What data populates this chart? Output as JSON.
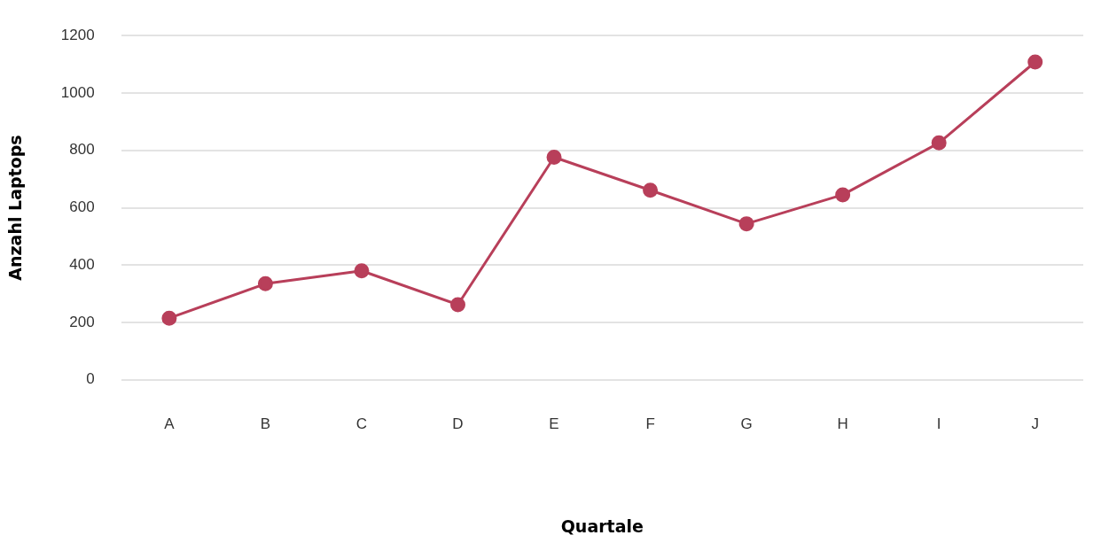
{
  "chart_data": {
    "type": "line",
    "xlabel": "Quartale",
    "ylabel": "Anzahl Laptops",
    "categories": [
      "A",
      "B",
      "C",
      "D",
      "E",
      "F",
      "G",
      "H",
      "I",
      "J"
    ],
    "series": [
      {
        "color": "#b83f5a",
        "values": [
          215,
          335,
          380,
          262,
          776,
          661,
          544,
          645,
          826,
          1108
        ]
      }
    ],
    "ylim": [
      0,
      1200
    ],
    "yticks": [
      0,
      200,
      400,
      600,
      800,
      1000,
      1200
    ],
    "grid": "y",
    "legend": false,
    "marker": "circle",
    "line_style": "solid"
  }
}
